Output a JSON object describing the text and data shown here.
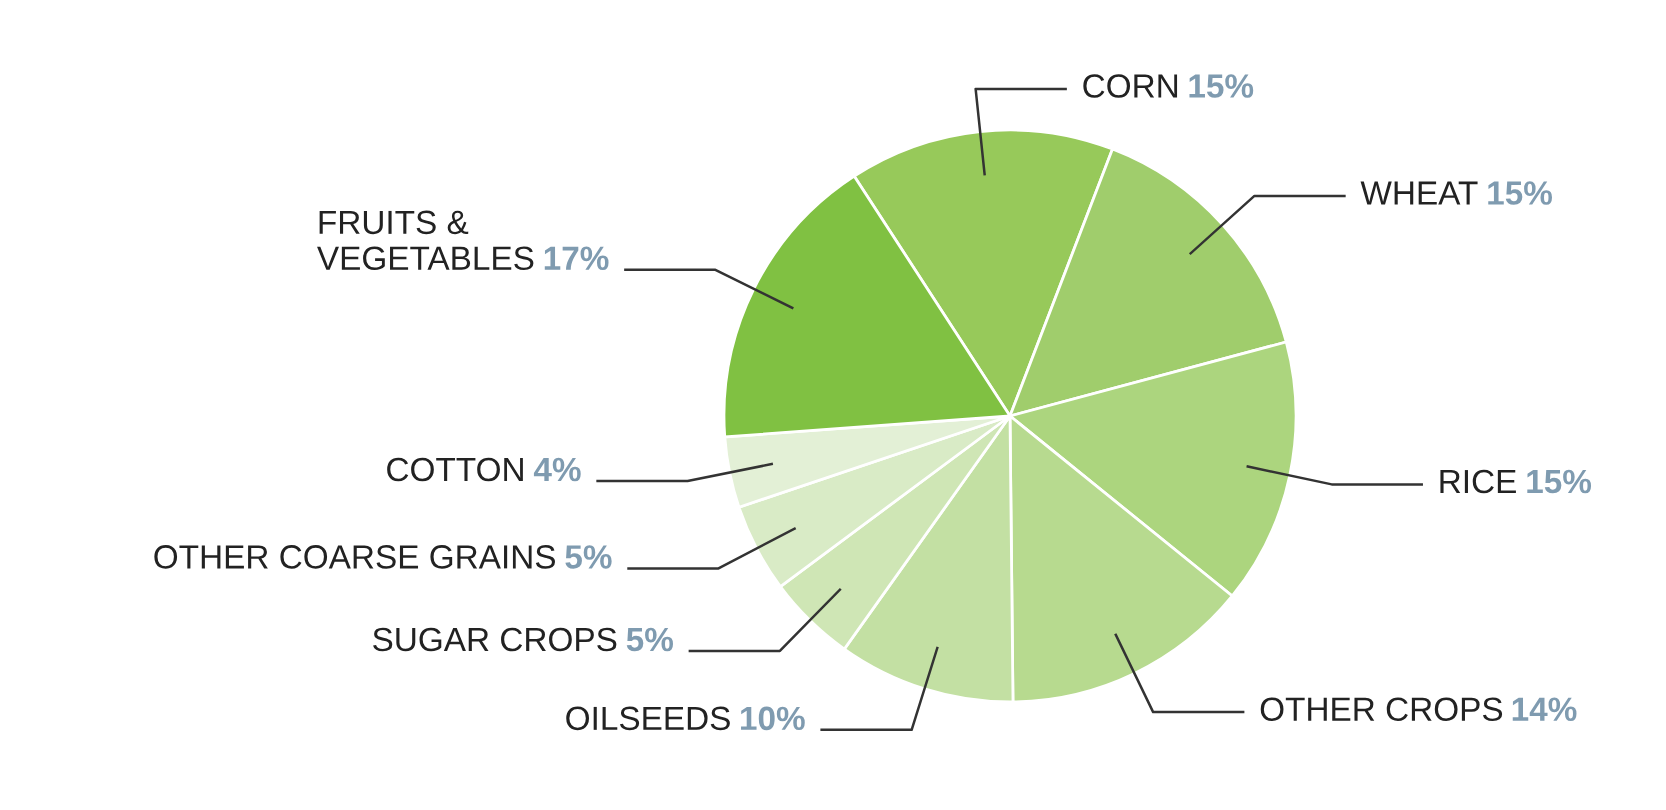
{
  "chart_data": {
    "type": "pie",
    "categories": [
      "CORN",
      "WHEAT",
      "RICE",
      "OTHER CROPS",
      "OILSEEDS",
      "SUGAR CROPS",
      "OTHER COARSE GRAINS",
      "COTTON",
      "FRUITS &\nVEGETABLES"
    ],
    "values": [
      15,
      15,
      15,
      14,
      10,
      5,
      5,
      4,
      17
    ],
    "value_labels": [
      "15%",
      "15%",
      "15%",
      "14%",
      "10%",
      "5%",
      "5%",
      "4%",
      "17%"
    ],
    "colors": [
      "#97c95a",
      "#a0cd6c",
      "#acd57e",
      "#b7da8f",
      "#c3e0a3",
      "#cfe6b5",
      "#d9ebc6",
      "#e3f0d6",
      "#80c142"
    ],
    "legend": false
  }
}
